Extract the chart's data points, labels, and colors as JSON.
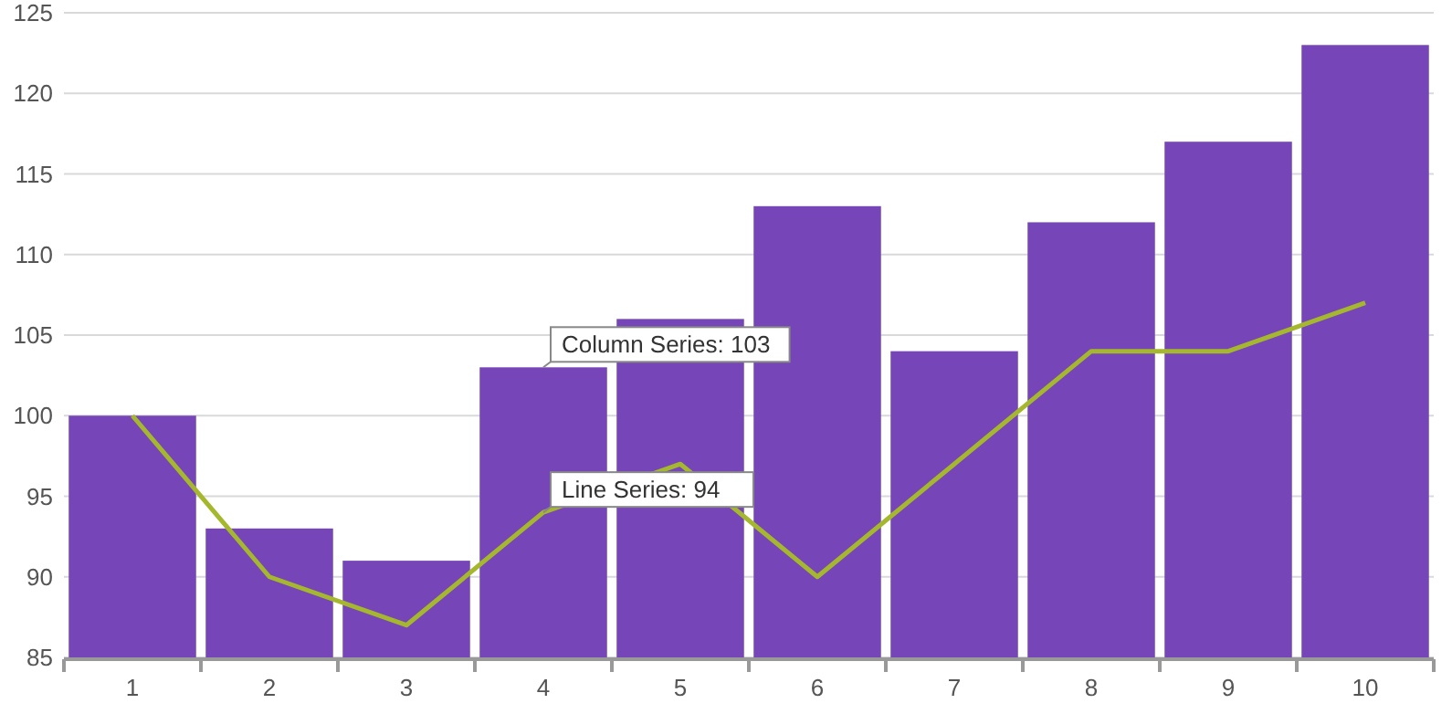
{
  "chart_data": {
    "type": "bar",
    "categories": [
      "1",
      "2",
      "3",
      "4",
      "5",
      "6",
      "7",
      "8",
      "9",
      "10"
    ],
    "series": [
      {
        "color": "#7646b8",
        "values": [
          100,
          93,
          91,
          103,
          106,
          113,
          104,
          112,
          117,
          123
        ]
      },
      {
        "type": "line",
        "color": "#a5b82d",
        "values": [
          100,
          90,
          87,
          94,
          97,
          90,
          97,
          104,
          104,
          107
        ]
      }
    ],
    "ylim": [
      85,
      125
    ],
    "yticks": [
      85,
      90,
      95,
      100,
      105,
      110,
      115,
      120,
      125
    ],
    "grid": "y",
    "marker": "none",
    "annotations": [
      {
        "text": "Column Series: 103",
        "x": "4",
        "y": 103
      },
      {
        "text": "Line Series: 94",
        "x": "4",
        "y": 94
      }
    ]
  }
}
